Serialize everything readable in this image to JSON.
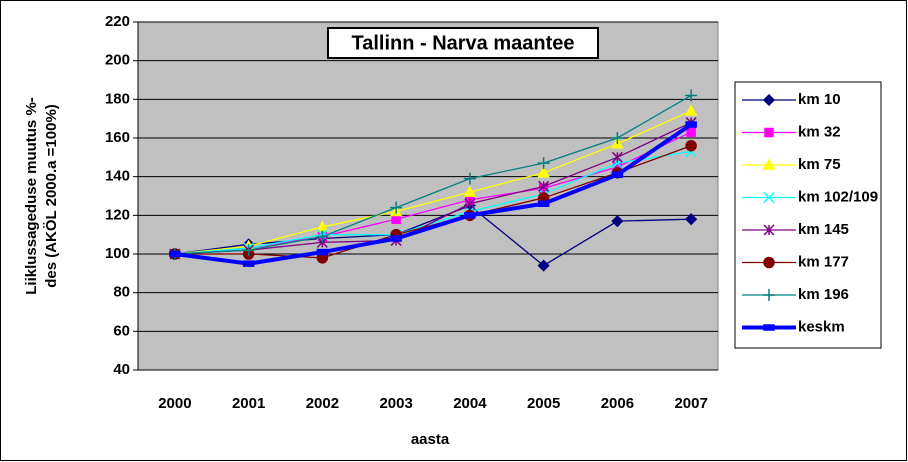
{
  "chart_data": {
    "type": "line",
    "title": "Tallinn - Narva maantee",
    "x_label": "aasta",
    "y_label": [
      "Liiklussageduse muutus %-",
      "des (AKÖL 2000.a =100%)"
    ],
    "categories": [
      "2000",
      "2001",
      "2002",
      "2003",
      "2004",
      "2005",
      "2006",
      "2007"
    ],
    "ylim": [
      40,
      220
    ],
    "yticks": [
      40,
      60,
      80,
      100,
      120,
      140,
      160,
      180,
      200,
      220
    ],
    "grid": true,
    "legend": "right",
    "series": [
      {
        "name": "km 10",
        "color": "#000080",
        "marker": "diamond",
        "values": [
          100,
          105,
          108,
          110,
          125,
          94,
          117,
          118
        ]
      },
      {
        "name": "km 32",
        "color": "#ff00ff",
        "marker": "square",
        "values": [
          100,
          103,
          109,
          118,
          128,
          134,
          145,
          163
        ]
      },
      {
        "name": "km 75",
        "color": "#ffff00",
        "marker": "triangle",
        "values": [
          100,
          104,
          114,
          122,
          132,
          142,
          157,
          174
        ]
      },
      {
        "name": "km 102/109",
        "color": "#00ffff",
        "marker": "x",
        "values": [
          100,
          103,
          110,
          110,
          122,
          131,
          147,
          153
        ]
      },
      {
        "name": "km 145",
        "color": "#800080",
        "marker": "star",
        "values": [
          100,
          102,
          106,
          107,
          126,
          135,
          150,
          168
        ]
      },
      {
        "name": "km 177",
        "color": "#800000",
        "marker": "circle",
        "values": [
          100,
          100,
          98,
          110,
          120,
          129,
          142,
          156
        ]
      },
      {
        "name": "km 196",
        "color": "#008080",
        "marker": "plus",
        "values": [
          100,
          102,
          109,
          124,
          139,
          147,
          160,
          182
        ]
      },
      {
        "name": "keskm",
        "color": "#0000ff",
        "marker": "dash",
        "width": 4,
        "values": [
          100,
          95,
          101,
          108,
          120,
          126,
          141,
          167
        ]
      }
    ]
  }
}
